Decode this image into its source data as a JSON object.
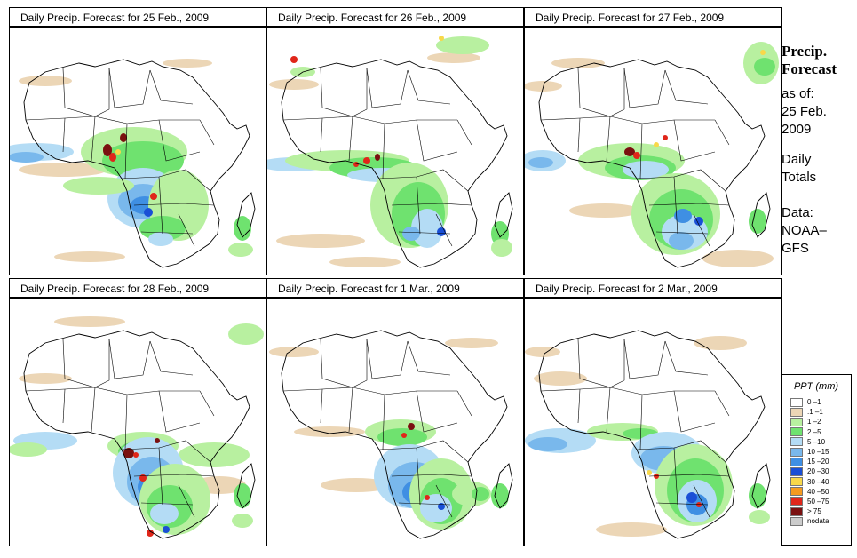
{
  "panels": [
    {
      "title": "Daily Precip. Forecast for  25 Feb., 2009"
    },
    {
      "title": "Daily Precip. Forecast for  26 Feb., 2009"
    },
    {
      "title": "Daily Precip. Forecast for  27 Feb., 2009"
    },
    {
      "title": "Daily Precip. Forecast for  28 Feb., 2009"
    },
    {
      "title": "Daily Precip. Forecast for  1 Mar., 2009"
    },
    {
      "title": "Daily Precip. Forecast for  2 Mar., 2009"
    }
  ],
  "sidebar": {
    "title_line1": "Precip.",
    "title_line2": "Forecast",
    "asof": "as of:",
    "date_line1": "25 Feb.",
    "date_line2": "2009",
    "daily_line1": "Daily",
    "daily_line2": "Totals",
    "data_line1": "Data:",
    "data_line2": "NOAA–",
    "data_line3": "GFS"
  },
  "legend": {
    "title": "PPT (mm)",
    "items": [
      {
        "label": "0 –1",
        "color": "#ffffff"
      },
      {
        "label": ".1 –1",
        "color": "#ecd6b6"
      },
      {
        "label": "1 –2",
        "color": "#b8f0a0"
      },
      {
        "label": "2 –5",
        "color": "#6fe26f"
      },
      {
        "label": "5 –10",
        "color": "#b4dcf5"
      },
      {
        "label": "10 –15",
        "color": "#79b8ec"
      },
      {
        "label": "15 –20",
        "color": "#3f8fe3"
      },
      {
        "label": "20 –30",
        "color": "#1a4fd6"
      },
      {
        "label": "30 –40",
        "color": "#f8d84a"
      },
      {
        "label": "40 –50",
        "color": "#f59a1f"
      },
      {
        "label": "50 –75",
        "color": "#e0261a"
      },
      {
        "label": "> 75",
        "color": "#7a1010"
      },
      {
        "label": "nodata",
        "color": "#cccccc"
      }
    ]
  }
}
